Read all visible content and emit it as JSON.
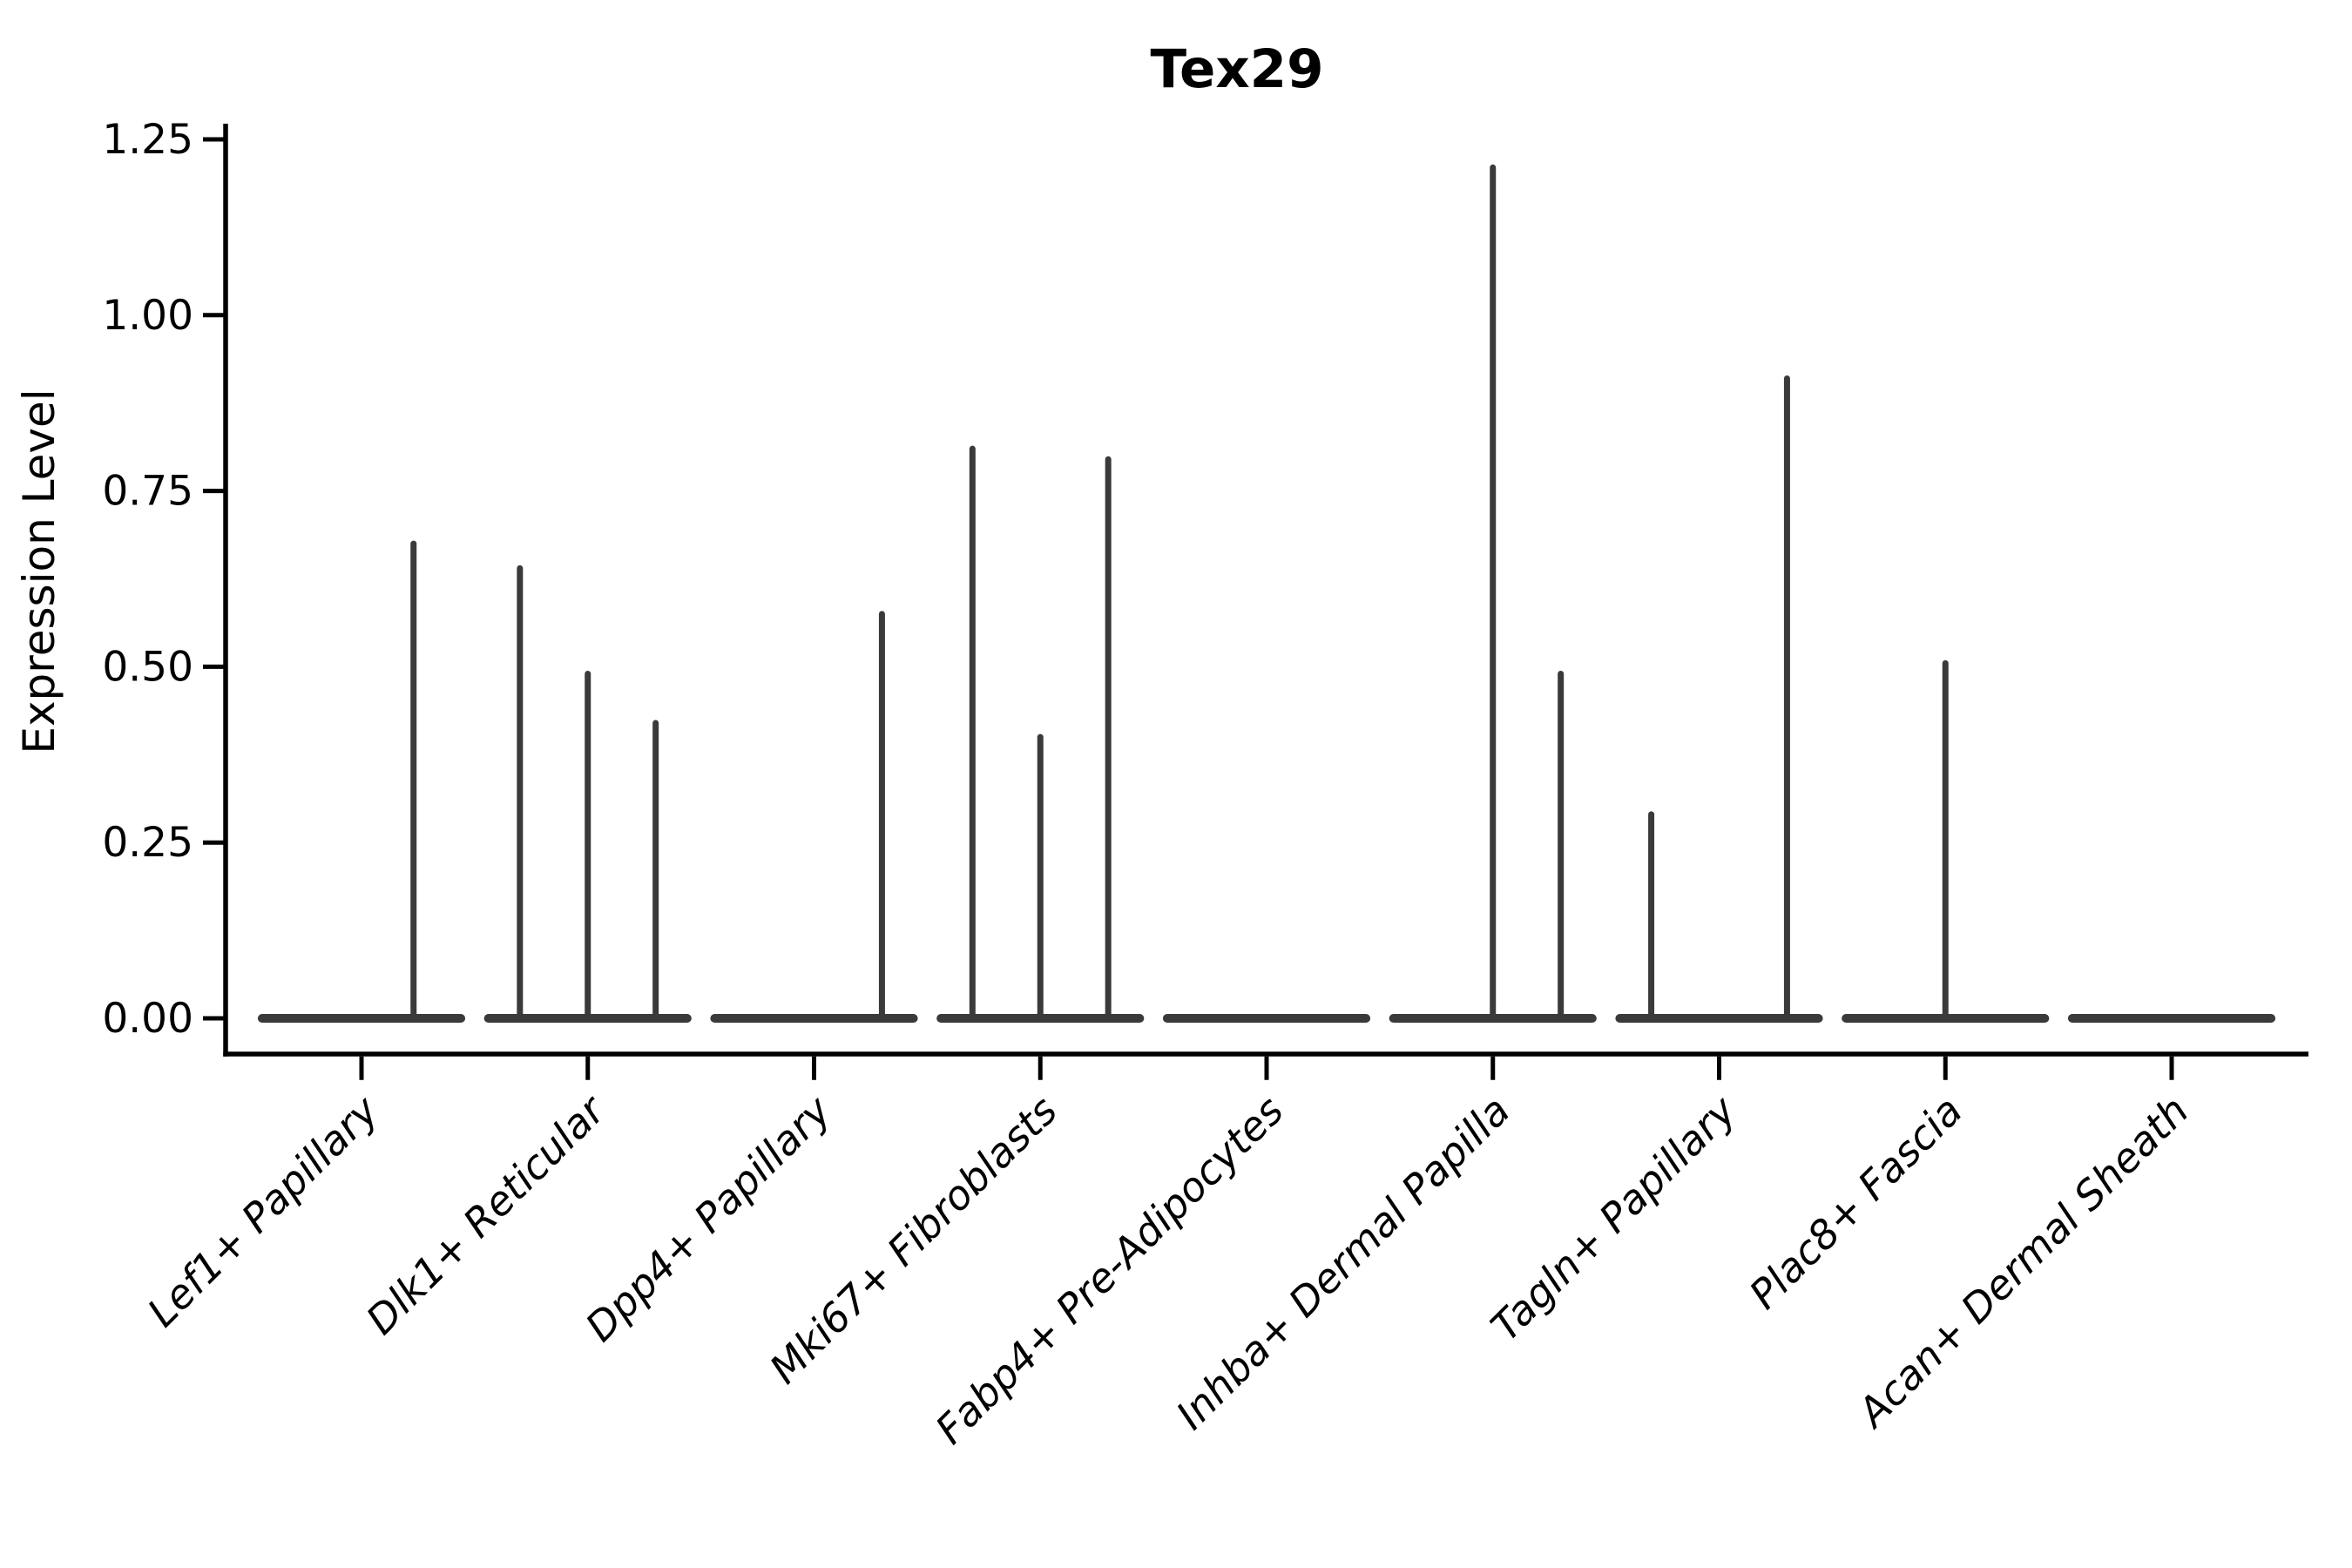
{
  "figure": {
    "title": "Tex29"
  },
  "chart_data": {
    "type": "violin",
    "title": "Tex29",
    "xlabel": "",
    "ylabel": "Expression Level",
    "ylim": [
      -0.05,
      1.27
    ],
    "grid": false,
    "legend": null,
    "ytick_values": [
      0.0,
      0.25,
      0.5,
      0.75,
      1.0,
      1.25
    ],
    "ytick_labels": [
      "0.00",
      "0.25",
      "0.50",
      "0.75",
      "1.00",
      "1.25"
    ],
    "categories": [
      "Lef1+ Papillary",
      "Dlk1+ Reticular",
      "Dpp4+ Papillary",
      "Mki67+ Fibroblasts",
      "Fabp4+ Pre-Adipocytes",
      "Inhba+ Dermal Papilla",
      "Tagln+ Papillary",
      "Plac8+ Fascia",
      "Acan+ Dermal Sheath"
    ],
    "violin_baseline_value": 0.0,
    "violin_width_frac": 0.917,
    "series": [
      {
        "category": "Lef1+ Papillary",
        "spikes": [
          {
            "offset": 0.23,
            "value": 0.675
          }
        ]
      },
      {
        "category": "Dlk1+ Reticular",
        "spikes": [
          {
            "offset": -0.3,
            "value": 0.64
          },
          {
            "offset": 0.0,
            "value": 0.49
          },
          {
            "offset": 0.3,
            "value": 0.42
          }
        ]
      },
      {
        "category": "Dpp4+ Papillary",
        "spikes": [
          {
            "offset": 0.3,
            "value": 0.575
          }
        ]
      },
      {
        "category": "Mki67+ Fibroblasts",
        "spikes": [
          {
            "offset": -0.3,
            "value": 0.81
          },
          {
            "offset": 0.0,
            "value": 0.4
          },
          {
            "offset": 0.3,
            "value": 0.795
          }
        ]
      },
      {
        "category": "Fabp4+ Pre-Adipocytes",
        "spikes": []
      },
      {
        "category": "Inhba+ Dermal Papilla",
        "spikes": [
          {
            "offset": 0.0,
            "value": 1.21
          },
          {
            "offset": 0.3,
            "value": 0.49
          }
        ]
      },
      {
        "category": "Tagln+ Papillary",
        "spikes": [
          {
            "offset": -0.3,
            "value": 0.29
          },
          {
            "offset": 0.3,
            "value": 0.91
          }
        ]
      },
      {
        "category": "Plac8+ Fascia",
        "spikes": [
          {
            "offset": 0.0,
            "value": 0.505
          }
        ]
      },
      {
        "category": "Acan+ Dermal Sheath",
        "spikes": []
      }
    ],
    "colors": {
      "violin": "#3a3a3a",
      "axis": "#000000",
      "background": "#ffffff"
    }
  }
}
